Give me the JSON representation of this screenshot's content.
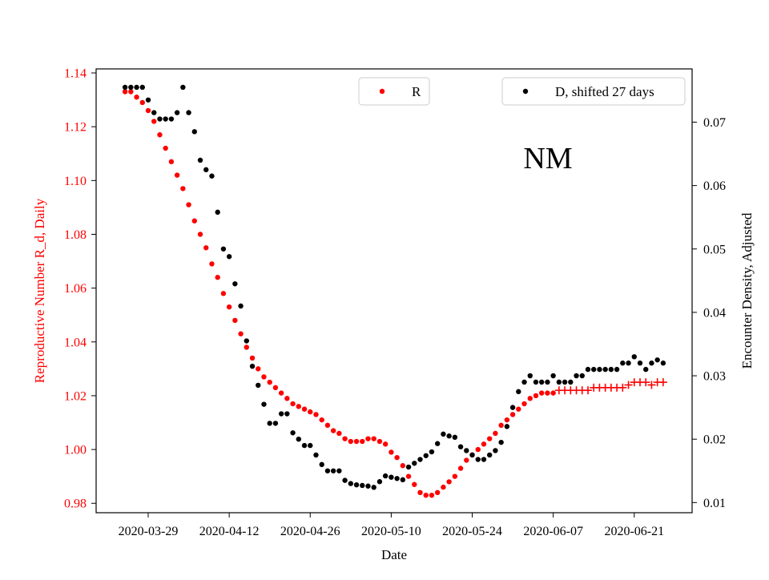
{
  "chart_data": {
    "type": "scatter",
    "annotation": "NM",
    "xlabel": "Date",
    "ylabel_left": "Reproductive Number R_d, Daily",
    "ylabel_right": "Encounter Density, Adjusted",
    "x_ticks": [
      "2020-03-29",
      "2020-04-12",
      "2020-04-26",
      "2020-05-10",
      "2020-05-24",
      "2020-06-07",
      "2020-06-21"
    ],
    "y_left_ticks": [
      0.98,
      1.0,
      1.02,
      1.04,
      1.06,
      1.08,
      1.1,
      1.12,
      1.14
    ],
    "y_right_ticks": [
      0.01,
      0.02,
      0.03,
      0.04,
      0.05,
      0.06,
      0.07
    ],
    "xlim": [
      "2020-03-20",
      "2020-07-01"
    ],
    "ylim_left": [
      0.9765,
      1.1415
    ],
    "ylim_right": [
      0.0084,
      0.0784
    ],
    "grid": false,
    "colors": {
      "R": "#ff0000",
      "D": "#000000",
      "left_axis_text": "#ff0000"
    },
    "legends": [
      {
        "entry": "R",
        "placement": "top-center"
      },
      {
        "entry": "D, shifted 27 days",
        "placement": "top-right"
      }
    ],
    "series": [
      {
        "name": "R",
        "axis": "left",
        "marker": "dot",
        "marker_after": "plus",
        "marker_switch_date": "2020-06-07",
        "x": [
          "2020-03-25",
          "2020-03-26",
          "2020-03-27",
          "2020-03-28",
          "2020-03-29",
          "2020-03-30",
          "2020-03-31",
          "2020-04-01",
          "2020-04-02",
          "2020-04-03",
          "2020-04-04",
          "2020-04-05",
          "2020-04-06",
          "2020-04-07",
          "2020-04-08",
          "2020-04-09",
          "2020-04-10",
          "2020-04-11",
          "2020-04-12",
          "2020-04-13",
          "2020-04-14",
          "2020-04-15",
          "2020-04-16",
          "2020-04-17",
          "2020-04-18",
          "2020-04-19",
          "2020-04-20",
          "2020-04-21",
          "2020-04-22",
          "2020-04-23",
          "2020-04-24",
          "2020-04-25",
          "2020-04-26",
          "2020-04-27",
          "2020-04-28",
          "2020-04-29",
          "2020-04-30",
          "2020-05-01",
          "2020-05-02",
          "2020-05-03",
          "2020-05-04",
          "2020-05-05",
          "2020-05-06",
          "2020-05-07",
          "2020-05-08",
          "2020-05-09",
          "2020-05-10",
          "2020-05-11",
          "2020-05-12",
          "2020-05-13",
          "2020-05-14",
          "2020-05-15",
          "2020-05-16",
          "2020-05-17",
          "2020-05-18",
          "2020-05-19",
          "2020-05-20",
          "2020-05-21",
          "2020-05-22",
          "2020-05-23",
          "2020-05-24",
          "2020-05-25",
          "2020-05-26",
          "2020-05-27",
          "2020-05-28",
          "2020-05-29",
          "2020-05-30",
          "2020-05-31",
          "2020-06-01",
          "2020-06-02",
          "2020-06-03",
          "2020-06-04",
          "2020-06-05",
          "2020-06-06",
          "2020-06-07",
          "2020-06-08",
          "2020-06-09",
          "2020-06-10",
          "2020-06-11",
          "2020-06-12",
          "2020-06-13",
          "2020-06-14",
          "2020-06-15",
          "2020-06-16",
          "2020-06-17",
          "2020-06-18",
          "2020-06-19",
          "2020-06-20",
          "2020-06-21",
          "2020-06-22",
          "2020-06-23",
          "2020-06-24",
          "2020-06-25",
          "2020-06-26"
        ],
        "values": [
          1.133,
          1.133,
          1.131,
          1.129,
          1.126,
          1.122,
          1.117,
          1.112,
          1.107,
          1.102,
          1.097,
          1.091,
          1.085,
          1.08,
          1.075,
          1.069,
          1.064,
          1.058,
          1.053,
          1.048,
          1.043,
          1.038,
          1.034,
          1.03,
          1.027,
          1.025,
          1.023,
          1.021,
          1.019,
          1.017,
          1.016,
          1.015,
          1.014,
          1.013,
          1.011,
          1.009,
          1.007,
          1.006,
          1.004,
          1.003,
          1.003,
          1.003,
          1.004,
          1.004,
          1.003,
          1.002,
          0.999,
          0.997,
          0.994,
          0.99,
          0.987,
          0.984,
          0.983,
          0.983,
          0.984,
          0.986,
          0.988,
          0.99,
          0.993,
          0.996,
          0.998,
          1.0,
          1.002,
          1.004,
          1.006,
          1.009,
          1.011,
          1.013,
          1.015,
          1.017,
          1.019,
          1.02,
          1.021,
          1.021,
          1.021,
          1.022,
          1.022,
          1.022,
          1.022,
          1.022,
          1.022,
          1.023,
          1.023,
          1.023,
          1.023,
          1.023,
          1.023,
          1.024,
          1.025,
          1.025,
          1.025,
          1.024,
          1.025,
          1.025
        ]
      },
      {
        "name": "D, shifted 27 days",
        "axis": "right",
        "marker": "dot",
        "x": [
          "2020-03-25",
          "2020-03-26",
          "2020-03-27",
          "2020-03-28",
          "2020-03-29",
          "2020-03-30",
          "2020-03-31",
          "2020-04-01",
          "2020-04-02",
          "2020-04-03",
          "2020-04-04",
          "2020-04-05",
          "2020-04-06",
          "2020-04-07",
          "2020-04-08",
          "2020-04-09",
          "2020-04-10",
          "2020-04-11",
          "2020-04-12",
          "2020-04-13",
          "2020-04-14",
          "2020-04-15",
          "2020-04-16",
          "2020-04-17",
          "2020-04-18",
          "2020-04-19",
          "2020-04-20",
          "2020-04-21",
          "2020-04-22",
          "2020-04-23",
          "2020-04-24",
          "2020-04-25",
          "2020-04-26",
          "2020-04-27",
          "2020-04-28",
          "2020-04-29",
          "2020-04-30",
          "2020-05-01",
          "2020-05-02",
          "2020-05-03",
          "2020-05-04",
          "2020-05-05",
          "2020-05-06",
          "2020-05-07",
          "2020-05-08",
          "2020-05-09",
          "2020-05-10",
          "2020-05-11",
          "2020-05-12",
          "2020-05-13",
          "2020-05-14",
          "2020-05-15",
          "2020-05-16",
          "2020-05-17",
          "2020-05-18",
          "2020-05-19",
          "2020-05-20",
          "2020-05-21",
          "2020-05-22",
          "2020-05-23",
          "2020-05-24",
          "2020-05-25",
          "2020-05-26",
          "2020-05-27",
          "2020-05-28",
          "2020-05-29",
          "2020-05-30",
          "2020-05-31",
          "2020-06-01",
          "2020-06-02",
          "2020-06-03",
          "2020-06-04",
          "2020-06-05",
          "2020-06-06",
          "2020-06-07",
          "2020-06-08",
          "2020-06-09",
          "2020-06-10",
          "2020-06-11",
          "2020-06-12",
          "2020-06-13",
          "2020-06-14",
          "2020-06-15",
          "2020-06-16",
          "2020-06-17",
          "2020-06-18",
          "2020-06-19",
          "2020-06-20",
          "2020-06-21",
          "2020-06-22",
          "2020-06-23",
          "2020-06-24",
          "2020-06-25",
          "2020-06-26"
        ],
        "values": [
          0.0755,
          0.0755,
          0.0755,
          0.0755,
          0.0735,
          0.0715,
          0.0705,
          0.0705,
          0.0705,
          0.0715,
          0.0755,
          0.0715,
          0.0685,
          0.064,
          0.0625,
          0.0615,
          0.0558,
          0.05,
          0.0488,
          0.0445,
          0.041,
          0.0355,
          0.0315,
          0.0285,
          0.0255,
          0.0225,
          0.0225,
          0.024,
          0.024,
          0.021,
          0.02,
          0.019,
          0.019,
          0.0175,
          0.016,
          0.015,
          0.015,
          0.015,
          0.0135,
          0.013,
          0.0128,
          0.0127,
          0.0126,
          0.0124,
          0.0133,
          0.0142,
          0.014,
          0.0138,
          0.0136,
          0.0156,
          0.0162,
          0.0168,
          0.0174,
          0.018,
          0.0193,
          0.0208,
          0.0205,
          0.0203,
          0.0188,
          0.0182,
          0.0175,
          0.0168,
          0.0168,
          0.0175,
          0.0182,
          0.0195,
          0.022,
          0.025,
          0.0275,
          0.029,
          0.03,
          0.029,
          0.029,
          0.029,
          0.03,
          0.029,
          0.029,
          0.029,
          0.03,
          0.03,
          0.031,
          0.031,
          0.031,
          0.031,
          0.031,
          0.031,
          0.032,
          0.032,
          0.033,
          0.032,
          0.031,
          0.032,
          0.0325,
          0.032
        ]
      }
    ]
  }
}
